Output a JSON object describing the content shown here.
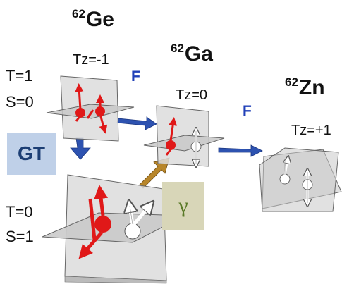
{
  "nuclei": [
    {
      "id": "ge",
      "mass": "62",
      "symbol": "Ge",
      "tz": "Tz=-1"
    },
    {
      "id": "ga",
      "mass": "62",
      "symbol": "Ga",
      "tz": "Tz=0"
    },
    {
      "id": "zn",
      "mass": "62",
      "symbol": "Zn",
      "tz": "Tz=+1"
    }
  ],
  "states": {
    "upper": {
      "t": "T=1",
      "s": "S=0"
    },
    "lower": {
      "t": "T=0",
      "s": "S=1"
    }
  },
  "transitions": {
    "fermi": "F",
    "gamow_teller": "GT",
    "gamma": "γ"
  },
  "colors": {
    "proton": "#e01818",
    "neutron": "#ffffff",
    "fermi_arrow": "#2d52b0",
    "gamma_arrow": "#b8862a",
    "gt_box": "#bfd0e8",
    "gamma_box": "#d8d6b8"
  }
}
